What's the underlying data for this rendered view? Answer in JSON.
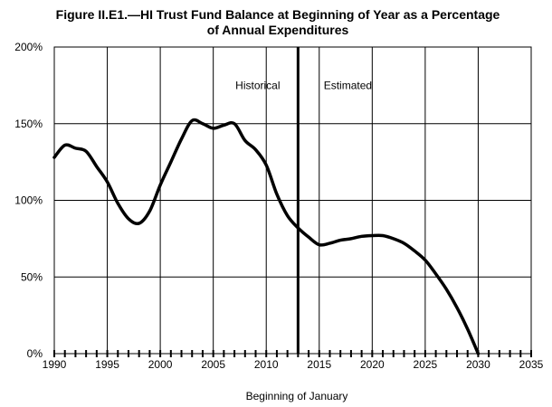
{
  "chart_data": {
    "type": "line",
    "title_line1": "Figure II.E1.—HI Trust Fund Balance at Beginning of Year as a Percentage",
    "title_line2": "of Annual Expenditures",
    "xlabel": "Beginning of January",
    "ylabel": "",
    "xlim": [
      1990,
      2035
    ],
    "ylim": [
      0,
      200
    ],
    "x_ticks": [
      1990,
      1995,
      2000,
      2005,
      2010,
      2015,
      2020,
      2025,
      2030,
      2035
    ],
    "x_tick_labels": [
      "1990",
      "1995",
      "2000",
      "2005",
      "2010",
      "2015",
      "2020",
      "2025",
      "2030",
      "2035"
    ],
    "y_ticks": [
      0,
      50,
      100,
      150,
      200
    ],
    "y_tick_labels": [
      "0%",
      "50%",
      "100%",
      "150%",
      "200%"
    ],
    "grid": true,
    "divider_x": 2013,
    "annotations": [
      {
        "text": "Historical",
        "x": 2009.2,
        "y": 175
      },
      {
        "text": "Estimated",
        "x": 2017.7,
        "y": 175
      }
    ],
    "series": [
      {
        "x": [
          1990,
          1991,
          1992,
          1993,
          1994,
          1995,
          1996,
          1997,
          1998,
          1999,
          2000,
          2001,
          2002,
          2003,
          2004,
          2005,
          2006,
          2007,
          2008,
          2009,
          2010,
          2011,
          2012,
          2013,
          2014,
          2015,
          2016,
          2017,
          2018,
          2019,
          2020,
          2021,
          2022,
          2023,
          2024,
          2025,
          2026,
          2027,
          2028,
          2029,
          2030
        ],
        "values": [
          128,
          136,
          134,
          132,
          122,
          112,
          98,
          88,
          85,
          93,
          110,
          125,
          140,
          152,
          150,
          147,
          149,
          150,
          139,
          133,
          123,
          104,
          90,
          82,
          76,
          71,
          72,
          74,
          75,
          76.5,
          77,
          77,
          75,
          72,
          67,
          61,
          52,
          42,
          30,
          16,
          0
        ]
      }
    ]
  }
}
